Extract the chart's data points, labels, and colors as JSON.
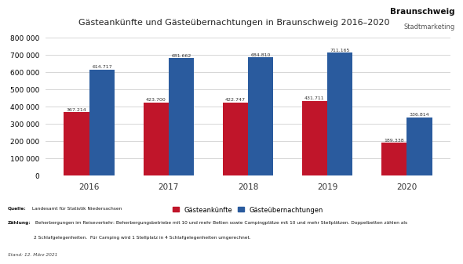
{
  "title": "Gästeankünfte und Gästeübernachtungen in Braunschweig 2016–2020",
  "years": [
    "2016",
    "2017",
    "2018",
    "2019",
    "2020"
  ],
  "gaesteankuenfte": [
    367214,
    423700,
    422747,
    431711,
    189338
  ],
  "gaesteuebernachtungen": [
    614717,
    681662,
    684810,
    711165,
    336814
  ],
  "color_ankuenfte": "#c0152a",
  "color_uebernachtungen": "#2a5b9e",
  "ylim": [
    0,
    800000
  ],
  "yticks": [
    0,
    100000,
    200000,
    300000,
    400000,
    500000,
    600000,
    700000,
    800000
  ],
  "legend_ankuenfte": "Gästeankünfte",
  "legend_uebernachtungen": "Gästeübernachtungen",
  "source_bold1": "Quelle:",
  "source_rest1": " Landesamt für Statistik Niedersachsen",
  "source_bold2": "Zählung:",
  "source_rest2": " Beherbergungen im Reiseverkehr: Beherbergungsbetriebe mit 10 und mehr Betten sowie Campingplätze mit 10 und mehr Stellplätzen. Doppelbetten zählen als",
  "source_line3": "2 Schlafgelegenheiten.  Für Camping wird 1 Stellplatz in 4 Schlafgelegenheiten umgerechnet.",
  "source_line4": "Stand: 12. März 2021",
  "logo_line1": "Braunschweig",
  "logo_line2": "Stadtmarketing",
  "background_color": "#ffffff",
  "bar_width": 0.32
}
